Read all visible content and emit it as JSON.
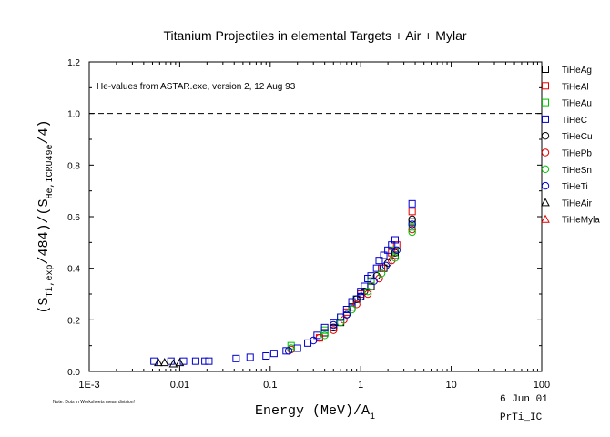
{
  "chart_data": {
    "type": "scatter",
    "title": "Titanium Projectiles in elemental Targets + Air + Mylar",
    "annotation": "He-values from ASTAR.exe, version 2, 12 Aug 93",
    "ylabel": {
      "p1": "(S",
      "sub1": "Ti,exp",
      "p2": "/484)/(S",
      "sub2": "He,ICRU49e",
      "p3": "/4)"
    },
    "xlabel": {
      "main": "Energy (MeV)/A",
      "sub": "1"
    },
    "footnote": "Note: Dots in Worksheets mean division!",
    "date_label": "6 Jun 01",
    "file_label": "PrTi_IC",
    "x_scale": "log",
    "xlim": [
      0.001,
      100
    ],
    "ylim": [
      0,
      1.2
    ],
    "x_ticks": [
      {
        "v": 0.001,
        "label": "1E-3"
      },
      {
        "v": 0.01,
        "label": "0.01"
      },
      {
        "v": 0.1,
        "label": "0.1"
      },
      {
        "v": 1,
        "label": "1"
      },
      {
        "v": 10,
        "label": "10"
      },
      {
        "v": 100,
        "label": "100"
      }
    ],
    "y_ticks": [
      {
        "v": 0,
        "label": "0.0"
      },
      {
        "v": 0.2,
        "label": "0.2"
      },
      {
        "v": 0.4,
        "label": "0.4"
      },
      {
        "v": 0.6,
        "label": "0.6"
      },
      {
        "v": 0.8,
        "label": "0.8"
      },
      {
        "v": 1.0,
        "label": "1.0"
      },
      {
        "v": 1.2,
        "label": "1.2"
      }
    ],
    "reference_line": {
      "y": 1.0,
      "style": "dashed"
    },
    "legend_position": "right, outside plot",
    "series": [
      {
        "name": "TiHeAg",
        "color": "#000000",
        "marker": "square",
        "points": [
          [
            0.4,
            0.15
          ],
          [
            0.6,
            0.19
          ],
          [
            0.8,
            0.25
          ],
          [
            1.0,
            0.29
          ],
          [
            1.3,
            0.33
          ],
          [
            1.8,
            0.4
          ],
          [
            2.4,
            0.45
          ],
          [
            3.7,
            0.58
          ]
        ]
      },
      {
        "name": "TiHeAl",
        "color": "#e00000",
        "marker": "square",
        "points": [
          [
            0.35,
            0.13
          ],
          [
            0.5,
            0.17
          ],
          [
            0.7,
            0.23
          ],
          [
            1.0,
            0.3
          ],
          [
            1.3,
            0.35
          ],
          [
            1.7,
            0.4
          ],
          [
            2.2,
            0.46
          ],
          [
            2.5,
            0.49
          ],
          [
            3.7,
            0.62
          ]
        ]
      },
      {
        "name": "TiHeAu",
        "color": "#00c000",
        "marker": "square",
        "points": [
          [
            0.17,
            0.1
          ],
          [
            0.4,
            0.16
          ],
          [
            0.6,
            0.21
          ],
          [
            0.9,
            0.28
          ],
          [
            1.3,
            0.35
          ],
          [
            2.4,
            0.47
          ],
          [
            3.7,
            0.56
          ]
        ]
      },
      {
        "name": "TiHeC",
        "color": "#0000d0",
        "marker": "square",
        "points": [
          [
            0.0052,
            0.04
          ],
          [
            0.008,
            0.04
          ],
          [
            0.011,
            0.04
          ],
          [
            0.015,
            0.04
          ],
          [
            0.019,
            0.04
          ],
          [
            0.021,
            0.04
          ],
          [
            0.042,
            0.05
          ],
          [
            0.06,
            0.055
          ],
          [
            0.09,
            0.06
          ],
          [
            0.11,
            0.07
          ],
          [
            0.15,
            0.08
          ],
          [
            0.2,
            0.09
          ],
          [
            0.26,
            0.11
          ],
          [
            0.33,
            0.14
          ],
          [
            0.4,
            0.17
          ],
          [
            0.5,
            0.19
          ],
          [
            0.6,
            0.21
          ],
          [
            0.7,
            0.24
          ],
          [
            0.8,
            0.27
          ],
          [
            0.9,
            0.28
          ],
          [
            1.0,
            0.31
          ],
          [
            1.1,
            0.33
          ],
          [
            1.2,
            0.36
          ],
          [
            1.3,
            0.37
          ],
          [
            1.5,
            0.4
          ],
          [
            1.6,
            0.43
          ],
          [
            1.8,
            0.45
          ],
          [
            2.0,
            0.47
          ],
          [
            2.2,
            0.49
          ],
          [
            2.4,
            0.51
          ],
          [
            3.7,
            0.65
          ]
        ]
      },
      {
        "name": "TiHeCu",
        "color": "#000000",
        "marker": "circle",
        "points": [
          [
            0.5,
            0.17
          ],
          [
            0.7,
            0.22
          ],
          [
            0.9,
            0.28
          ],
          [
            1.1,
            0.31
          ],
          [
            1.5,
            0.37
          ],
          [
            2.0,
            0.42
          ],
          [
            2.4,
            0.46
          ],
          [
            3.7,
            0.59
          ]
        ]
      },
      {
        "name": "TiHePb",
        "color": "#e00000",
        "marker": "circle",
        "points": [
          [
            0.17,
            0.085
          ],
          [
            0.35,
            0.13
          ],
          [
            0.5,
            0.16
          ],
          [
            0.65,
            0.2
          ],
          [
            0.9,
            0.26
          ],
          [
            1.2,
            0.3
          ],
          [
            1.6,
            0.36
          ],
          [
            2.2,
            0.43
          ],
          [
            3.7,
            0.55
          ]
        ]
      },
      {
        "name": "TiHeSn",
        "color": "#00c000",
        "marker": "circle",
        "points": [
          [
            0.17,
            0.09
          ],
          [
            0.4,
            0.14
          ],
          [
            0.6,
            0.19
          ],
          [
            0.8,
            0.24
          ],
          [
            1.2,
            0.31
          ],
          [
            1.7,
            0.38
          ],
          [
            2.4,
            0.44
          ],
          [
            3.7,
            0.54
          ]
        ]
      },
      {
        "name": "TiHeTi",
        "color": "#0000d0",
        "marker": "circle",
        "points": [
          [
            0.16,
            0.08
          ],
          [
            0.3,
            0.12
          ],
          [
            0.5,
            0.18
          ],
          [
            0.7,
            0.22
          ],
          [
            1.0,
            0.29
          ],
          [
            1.4,
            0.35
          ],
          [
            1.9,
            0.41
          ],
          [
            2.5,
            0.47
          ],
          [
            3.7,
            0.57
          ]
        ]
      },
      {
        "name": "TiHeAir",
        "color": "#000000",
        "marker": "triangle",
        "points": [
          [
            0.0058,
            0.035
          ],
          [
            0.0068,
            0.035
          ],
          [
            0.0085,
            0.03
          ],
          [
            0.01,
            0.035
          ]
        ]
      },
      {
        "name": "TiHeMyla",
        "color": "#e00000",
        "marker": "triangle",
        "points": []
      }
    ]
  }
}
